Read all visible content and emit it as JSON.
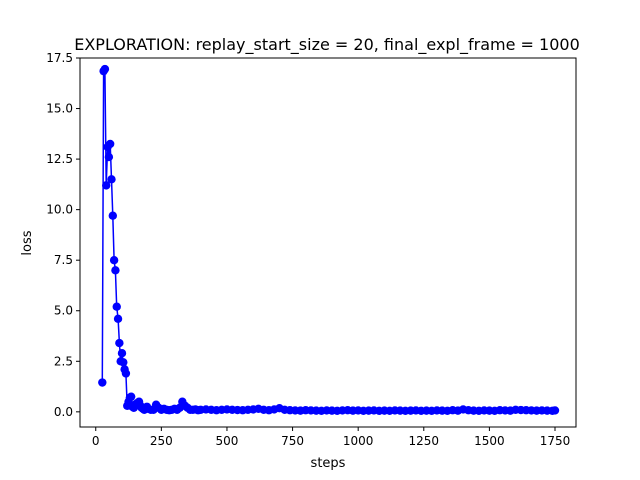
{
  "chart_data": {
    "type": "line",
    "title": "EXPLORATION: replay_start_size = 20, final_expl_frame = 1000",
    "xlabel": "steps",
    "ylabel": "loss",
    "xlim": [
      -60,
      1830
    ],
    "ylim": [
      -0.75,
      17.5
    ],
    "xticks": [
      0,
      250,
      500,
      750,
      1000,
      1250,
      1500,
      1750
    ],
    "yticks": [
      0.0,
      2.5,
      5.0,
      7.5,
      10.0,
      12.5,
      15.0,
      17.5
    ],
    "xtick_labels": [
      "0",
      "250",
      "500",
      "750",
      "1000",
      "1250",
      "1500",
      "1750"
    ],
    "ytick_labels": [
      "0.0",
      "2.5",
      "5.0",
      "7.5",
      "10.0",
      "12.5",
      "15.0",
      "17.5"
    ],
    "grid": false,
    "series": [
      {
        "color": "#0000ff",
        "marker": "circle",
        "x": [
          25,
          30,
          35,
          40,
          45,
          50,
          55,
          60,
          65,
          70,
          75,
          80,
          85,
          90,
          95,
          100,
          105,
          110,
          115,
          120,
          125,
          130,
          135,
          140,
          145,
          150,
          155,
          160,
          165,
          170,
          175,
          180,
          185,
          190,
          195,
          200,
          210,
          220,
          230,
          240,
          250,
          260,
          270,
          280,
          290,
          300,
          310,
          320,
          330,
          340,
          350,
          360,
          370,
          380,
          390,
          400,
          420,
          440,
          460,
          480,
          500,
          520,
          540,
          560,
          580,
          600,
          620,
          640,
          660,
          680,
          700,
          720,
          740,
          760,
          780,
          800,
          820,
          840,
          860,
          880,
          900,
          920,
          940,
          960,
          980,
          1000,
          1020,
          1040,
          1060,
          1080,
          1100,
          1120,
          1140,
          1160,
          1180,
          1200,
          1220,
          1240,
          1260,
          1280,
          1300,
          1320,
          1340,
          1360,
          1380,
          1400,
          1420,
          1440,
          1460,
          1480,
          1500,
          1520,
          1540,
          1560,
          1580,
          1600,
          1620,
          1640,
          1660,
          1680,
          1700,
          1720,
          1740,
          1750
        ],
        "y": [
          1.45,
          16.85,
          16.95,
          11.2,
          13.1,
          12.6,
          13.25,
          11.5,
          9.7,
          7.5,
          7.0,
          5.2,
          4.6,
          3.4,
          2.5,
          2.9,
          2.45,
          2.1,
          1.9,
          0.3,
          0.5,
          0.7,
          0.75,
          0.25,
          0.2,
          0.35,
          0.4,
          0.45,
          0.5,
          0.3,
          0.2,
          0.15,
          0.1,
          0.2,
          0.25,
          0.15,
          0.1,
          0.1,
          0.35,
          0.2,
          0.1,
          0.15,
          0.1,
          0.08,
          0.1,
          0.15,
          0.1,
          0.2,
          0.5,
          0.3,
          0.2,
          0.1,
          0.1,
          0.12,
          0.08,
          0.1,
          0.12,
          0.1,
          0.08,
          0.1,
          0.12,
          0.1,
          0.09,
          0.08,
          0.1,
          0.12,
          0.15,
          0.1,
          0.08,
          0.12,
          0.18,
          0.1,
          0.08,
          0.07,
          0.06,
          0.08,
          0.07,
          0.06,
          0.05,
          0.07,
          0.06,
          0.05,
          0.07,
          0.08,
          0.06,
          0.07,
          0.05,
          0.06,
          0.07,
          0.05,
          0.06,
          0.05,
          0.07,
          0.06,
          0.05,
          0.06,
          0.07,
          0.05,
          0.06,
          0.05,
          0.07,
          0.06,
          0.05,
          0.08,
          0.06,
          0.12,
          0.08,
          0.06,
          0.05,
          0.07,
          0.06,
          0.05,
          0.08,
          0.07,
          0.06,
          0.1,
          0.09,
          0.08,
          0.07,
          0.06,
          0.07,
          0.06,
          0.05,
          0.07
        ]
      }
    ]
  }
}
